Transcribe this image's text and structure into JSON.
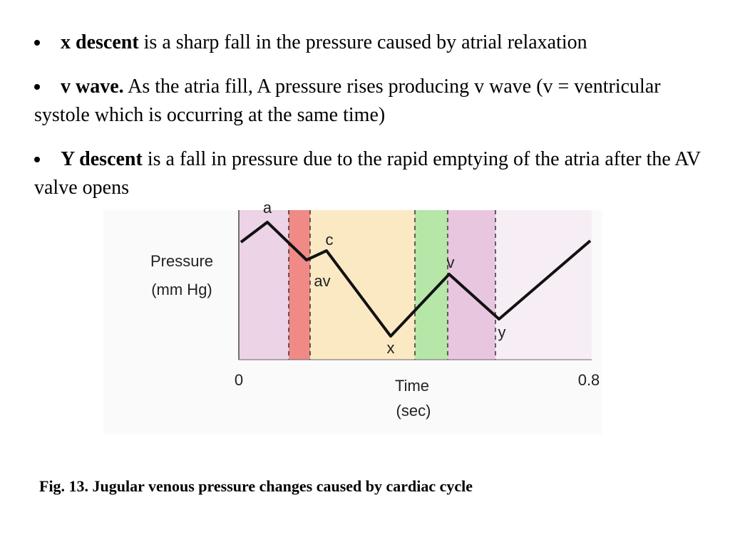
{
  "bullets": [
    {
      "term": "x descent",
      "text": " is a sharp fall in the pressure caused by atrial relaxation"
    },
    {
      "term": "v wave.",
      "text": " As the atria fill, A pressure rises producing v wave (v = ventricular  systole which is occurring at the same time)"
    },
    {
      "term": "Y descent",
      "text": " is a fall in pressure due to the rapid emptying of the atria after the AV valve opens"
    }
  ],
  "figure": {
    "y_label": [
      "Pressure",
      "(mm Hg)"
    ],
    "x_label": [
      "Time",
      "(sec)"
    ],
    "x_start": "0",
    "x_end": "0.8",
    "wave_labels": {
      "a": "a",
      "c": "c",
      "av": "av",
      "v": "v",
      "x": "x",
      "y": "y"
    }
  },
  "caption": "Fig. 13. Jugular venous pressure changes caused by cardiac cycle"
}
